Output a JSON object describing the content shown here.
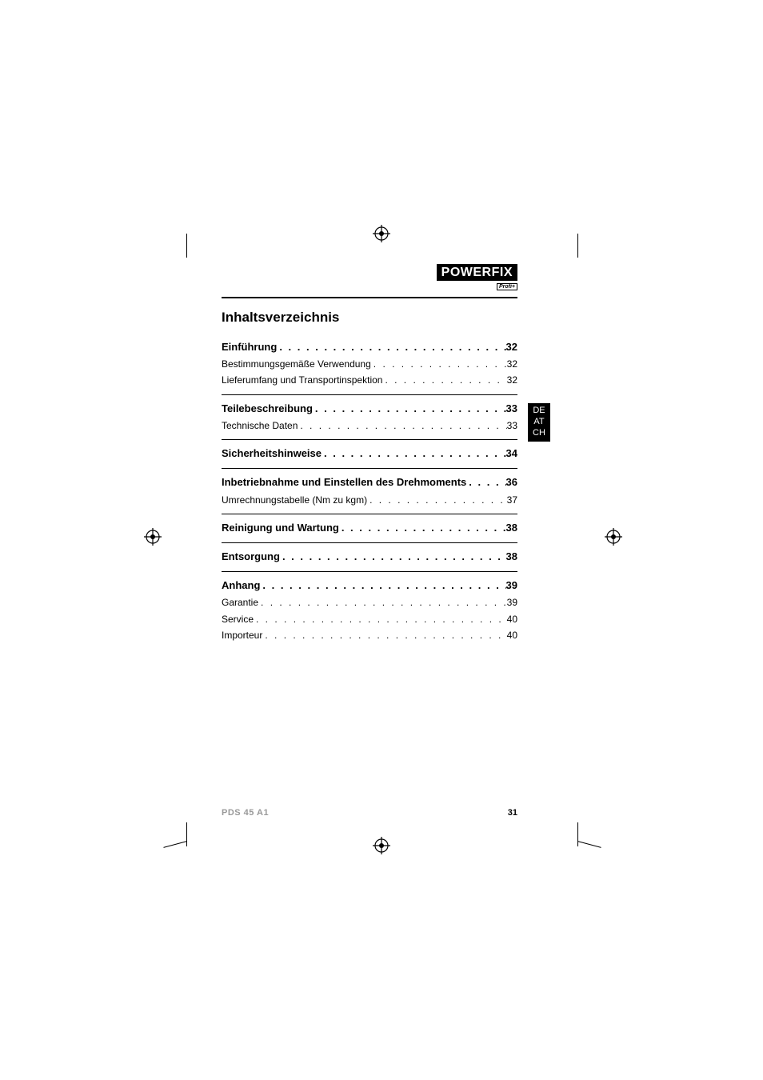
{
  "colors": {
    "black": "#000000",
    "white": "#ffffff",
    "muted": "#999999"
  },
  "brand": {
    "name": "POWERFIX",
    "subline": "Profi+"
  },
  "locale_tab": [
    "DE",
    "AT",
    "CH"
  ],
  "toc_title": "Inhaltsverzeichnis",
  "toc": [
    {
      "level": 1,
      "label": "Einführung",
      "page": "32"
    },
    {
      "level": 2,
      "label": "Bestimmungsgemäße Verwendung",
      "page": "32"
    },
    {
      "level": 2,
      "label": "Lieferumfang und Transportinspektion",
      "page": "32",
      "rule_after": true
    },
    {
      "level": 1,
      "label": "Teilebeschreibung",
      "page": "33"
    },
    {
      "level": 2,
      "label": "Technische Daten",
      "page": "33",
      "rule_after": true
    },
    {
      "level": 1,
      "label": "Sicherheitshinweise",
      "page": "34",
      "rule_after": true
    },
    {
      "level": 1,
      "label": "Inbetriebnahme und Einstellen des Drehmoments",
      "page": "36"
    },
    {
      "level": 2,
      "label": "Umrechnungstabelle (Nm zu kgm)",
      "page": "37",
      "rule_after": true
    },
    {
      "level": 1,
      "label": "Reinigung und Wartung",
      "page": "38",
      "rule_after": true
    },
    {
      "level": 1,
      "label": "Entsorgung",
      "page": "38",
      "rule_after": true
    },
    {
      "level": 1,
      "label": "Anhang",
      "page": "39"
    },
    {
      "level": 2,
      "label": "Garantie",
      "page": "39"
    },
    {
      "level": 2,
      "label": "Service",
      "page": "40"
    },
    {
      "level": 2,
      "label": "Importeur",
      "page": "40"
    }
  ],
  "footer": {
    "model": "PDS 45 A1",
    "page_number": "31"
  }
}
